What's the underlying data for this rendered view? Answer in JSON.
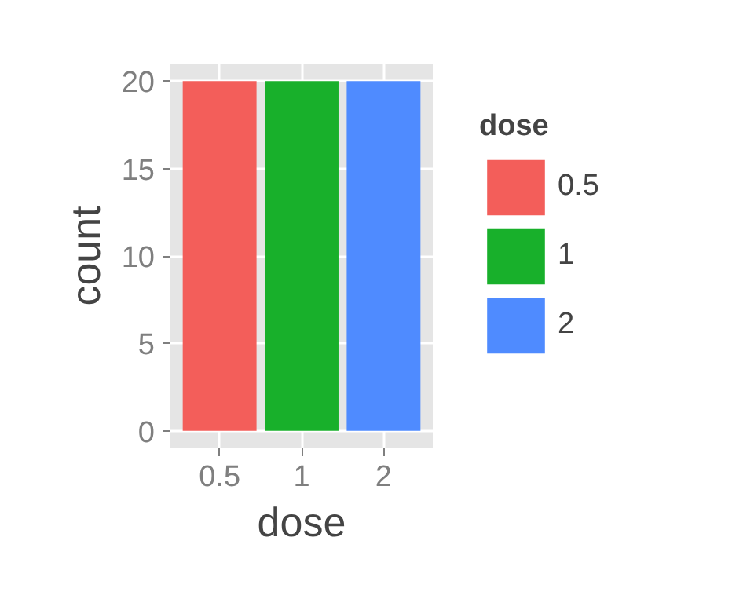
{
  "chart_data": {
    "type": "bar",
    "xlabel": "dose",
    "ylabel": "count",
    "legend_title": "dose",
    "stacked": true,
    "categories": [
      "0.5",
      "1",
      "2"
    ],
    "series": [
      {
        "name": "0.5",
        "color": "#f35e5a",
        "values": [
          20,
          null,
          null
        ]
      },
      {
        "name": "1",
        "color": "#18b02b",
        "values": [
          null,
          20,
          null
        ]
      },
      {
        "name": "2",
        "color": "#4f8bff",
        "values": [
          null,
          null,
          20
        ]
      }
    ],
    "ylim": [
      -1,
      21
    ],
    "yticks": [
      0,
      5,
      10,
      15,
      20
    ],
    "grid": true,
    "legend": "right"
  }
}
